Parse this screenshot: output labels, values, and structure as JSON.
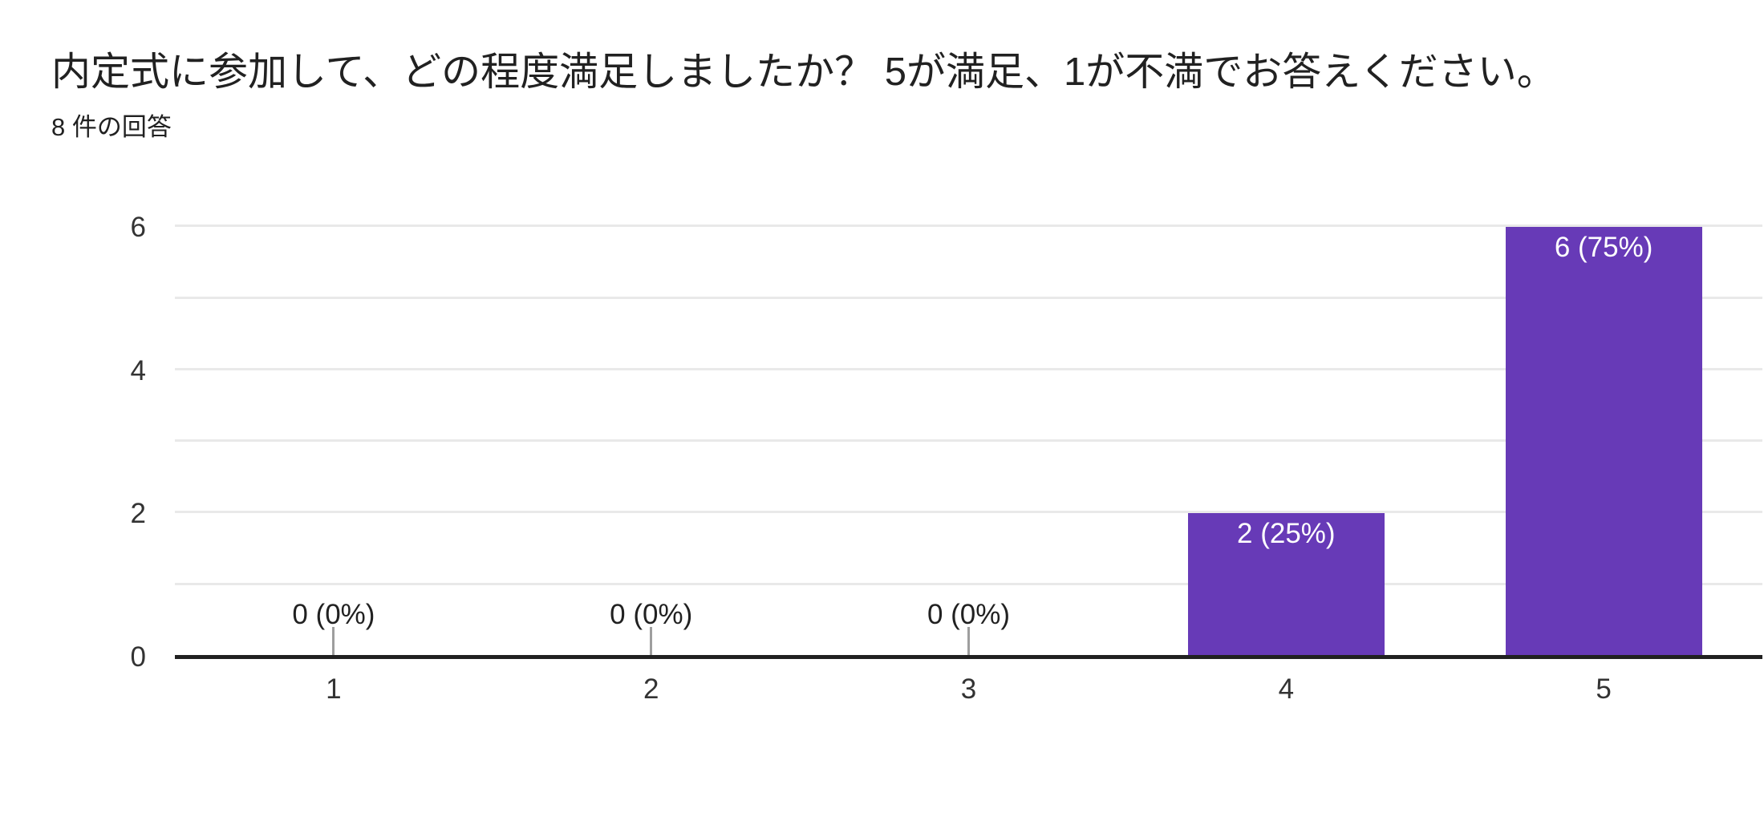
{
  "card": {
    "title": "内定式に参加して、どの程度満足しましたか？ 5が満足、1が不満でお答えください。",
    "subtitle": "8 件の回答"
  },
  "chart_data": {
    "type": "bar",
    "title": "内定式に参加して、どの程度満足しましたか？ 5が満足、1が不満でお答えください。",
    "subtitle": "8 件の回答",
    "categories": [
      "1",
      "2",
      "3",
      "4",
      "5"
    ],
    "values": [
      0,
      0,
      0,
      2,
      6
    ],
    "bar_labels": [
      "0 (0%)",
      "0 (0%)",
      "0 (0%)",
      "2 (25%)",
      "6 (75%)"
    ],
    "xlabel": "",
    "ylabel": "",
    "ylim": [
      0,
      6
    ],
    "yticks": [
      "0",
      "2",
      "4",
      "6"
    ],
    "gridline_step": 1,
    "grid": true,
    "legend": "none",
    "colors": {
      "bar": "#673ab7",
      "bar_label": "#ffffff",
      "axis_line": "#212121",
      "gridline": "#e9e9e9",
      "tick_label": "#333333",
      "zero_label": "#212121",
      "stem": "#9e9e9e",
      "title_text": "#212121",
      "background": "#ffffff"
    }
  }
}
